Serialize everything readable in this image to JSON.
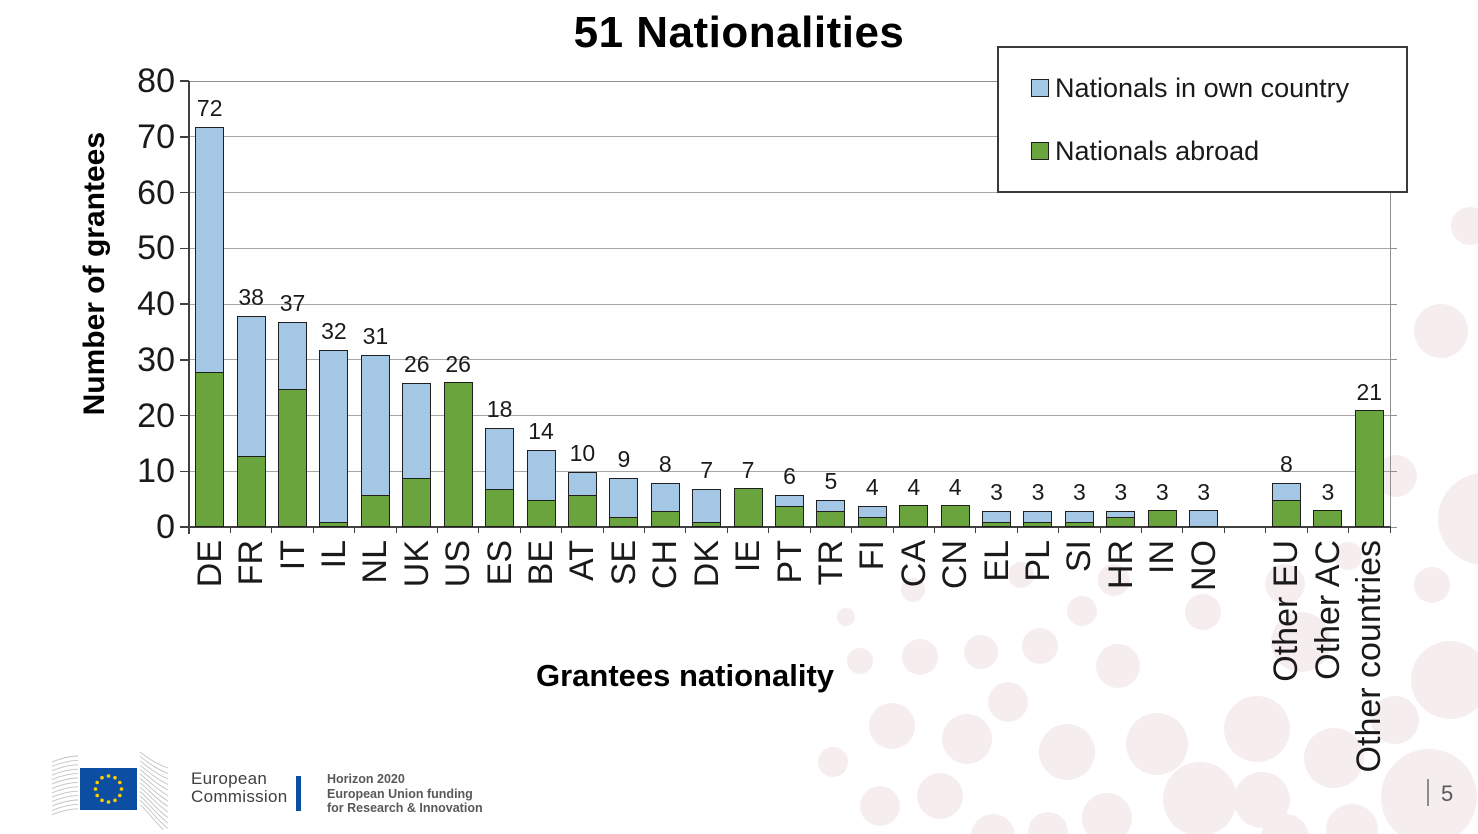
{
  "title": "51 Nationalities",
  "legend": [
    {
      "label": "Nationals in own country",
      "color": "#A4C7E5"
    },
    {
      "label": "Nationals abroad",
      "color": "#6AA43D"
    }
  ],
  "chart_data": {
    "type": "bar",
    "stacked": true,
    "stack_order": "bottom-to-top",
    "title": "51 Nationalities",
    "xlabel": "Grantees nationality",
    "ylabel": "Number of grantees",
    "ylim": [
      0,
      80
    ],
    "yticks": [
      0,
      10,
      20,
      30,
      40,
      50,
      60,
      70,
      80
    ],
    "grid": true,
    "legend_position": "top-right",
    "separator_before_category": "Other EU",
    "categories": [
      "DE",
      "FR",
      "IT",
      "IL",
      "NL",
      "UK",
      "US",
      "ES",
      "BE",
      "AT",
      "SE",
      "CH",
      "DK",
      "IE",
      "PT",
      "TR",
      "FI",
      "CA",
      "CN",
      "EL",
      "PL",
      "SI",
      "HR",
      "IN",
      "NO",
      "Other EU",
      "Other AC",
      "Other countries"
    ],
    "series": [
      {
        "name": "Nationals abroad",
        "color": "#6AA43D",
        "values": [
          28,
          13,
          25,
          1,
          6,
          9,
          26,
          7,
          5,
          6,
          2,
          3,
          1,
          7,
          4,
          3,
          2,
          4,
          4,
          1,
          1,
          1,
          2,
          3,
          0,
          5,
          3,
          21
        ]
      },
      {
        "name": "Nationals in own country",
        "color": "#A4C7E5",
        "values": [
          44,
          25,
          12,
          31,
          25,
          17,
          0,
          11,
          9,
          4,
          7,
          5,
          6,
          0,
          2,
          2,
          2,
          0,
          0,
          2,
          2,
          2,
          1,
          0,
          3,
          3,
          0,
          0
        ]
      }
    ],
    "totals": [
      72,
      38,
      37,
      32,
      31,
      26,
      26,
      18,
      14,
      10,
      9,
      8,
      7,
      7,
      6,
      5,
      4,
      4,
      4,
      3,
      3,
      3,
      3,
      3,
      3,
      8,
      3,
      21
    ]
  },
  "footer": {
    "logo": {
      "line1": "European",
      "line2": "Commission"
    },
    "program": [
      "Horizon 2020",
      "European Union funding",
      "for Research & Innovation"
    ],
    "page_number": "5"
  }
}
